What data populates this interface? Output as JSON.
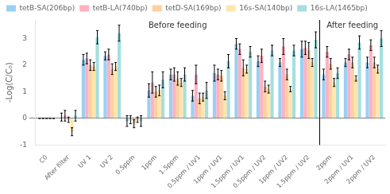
{
  "chart_data": {
    "type": "bar",
    "categories": [
      "C0",
      "After filter",
      "UV 1",
      "UV 2",
      "0.5ppm",
      "1ppm",
      "1.5ppm",
      "0.5ppm / UV1",
      "1ppm / UV1",
      "1.5ppm / UV1",
      "0.5ppm / UV2",
      "1ppm / UV2",
      "1.5ppm / UV2",
      "2ppm",
      "2ppm / UV1",
      "2ppm / UV2"
    ],
    "series": [
      {
        "name": "tetB-SA(206bp)",
        "values": [
          0.0,
          0.05,
          2.2,
          2.35,
          -0.1,
          1.05,
          1.65,
          0.85,
          1.7,
          2.8,
          2.15,
          2.1,
          2.6,
          1.65,
          2.1,
          2.1
        ],
        "errors": [
          0.0,
          0.15,
          0.2,
          0.15,
          0.2,
          0.25,
          0.2,
          0.2,
          0.3,
          0.2,
          0.2,
          0.15,
          0.3,
          0.2,
          0.15,
          0.2
        ]
      },
      {
        "name": "tetB-LA(740bp)",
        "values": [
          0.0,
          0.1,
          2.25,
          2.4,
          -0.05,
          1.35,
          1.65,
          1.65,
          1.65,
          2.6,
          2.35,
          2.7,
          2.65,
          2.5,
          2.4,
          2.75
        ],
        "errors": [
          0.0,
          0.2,
          0.2,
          0.2,
          0.15,
          0.4,
          0.25,
          0.35,
          0.2,
          0.2,
          0.25,
          0.3,
          0.25,
          0.2,
          0.2,
          0.2
        ]
      },
      {
        "name": "tetD-SA(169bp)",
        "values": [
          0.0,
          -0.05,
          2.0,
          1.85,
          -0.2,
          1.0,
          1.5,
          0.75,
          1.6,
          1.9,
          1.2,
          1.65,
          2.55,
          2.05,
          2.1,
          2.1
        ],
        "errors": [
          0.0,
          0.1,
          0.2,
          0.2,
          0.15,
          0.2,
          0.25,
          0.2,
          0.2,
          0.3,
          0.2,
          0.2,
          0.3,
          0.2,
          0.2,
          0.2
        ]
      },
      {
        "name": "16s-SA(140bp)",
        "values": [
          0.0,
          -0.5,
          1.95,
          1.95,
          -0.05,
          1.05,
          1.35,
          0.8,
          0.85,
          1.85,
          1.1,
          1.1,
          2.1,
          1.35,
          1.5,
          1.85
        ],
        "errors": [
          0.0,
          0.15,
          0.15,
          0.15,
          0.1,
          0.2,
          0.15,
          0.15,
          0.15,
          0.15,
          0.15,
          0.1,
          0.15,
          0.15,
          0.1,
          0.15
        ]
      },
      {
        "name": "16s-LA(1465bp)",
        "values": [
          0.0,
          0.1,
          3.05,
          3.2,
          -0.1,
          1.45,
          1.65,
          1.05,
          2.15,
          2.5,
          2.55,
          2.55,
          2.95,
          1.7,
          2.85,
          3.0
        ],
        "errors": [
          0.0,
          0.2,
          0.25,
          0.3,
          0.2,
          0.3,
          0.25,
          0.3,
          0.25,
          0.2,
          0.2,
          0.2,
          0.3,
          0.2,
          0.25,
          0.3
        ]
      }
    ],
    "ylabel": "-Log(C/C₀)",
    "ylim": [
      -1,
      3.7
    ],
    "yticks": [
      -1,
      0,
      1,
      2,
      3
    ],
    "annotations": [
      {
        "text": "Before feeding",
        "from": "C0",
        "to": "1.5ppm / UV2"
      },
      {
        "text": "After feeding",
        "from": "2ppm",
        "to": "2ppm / UV2"
      }
    ],
    "legend": "upper left",
    "grid": false
  }
}
